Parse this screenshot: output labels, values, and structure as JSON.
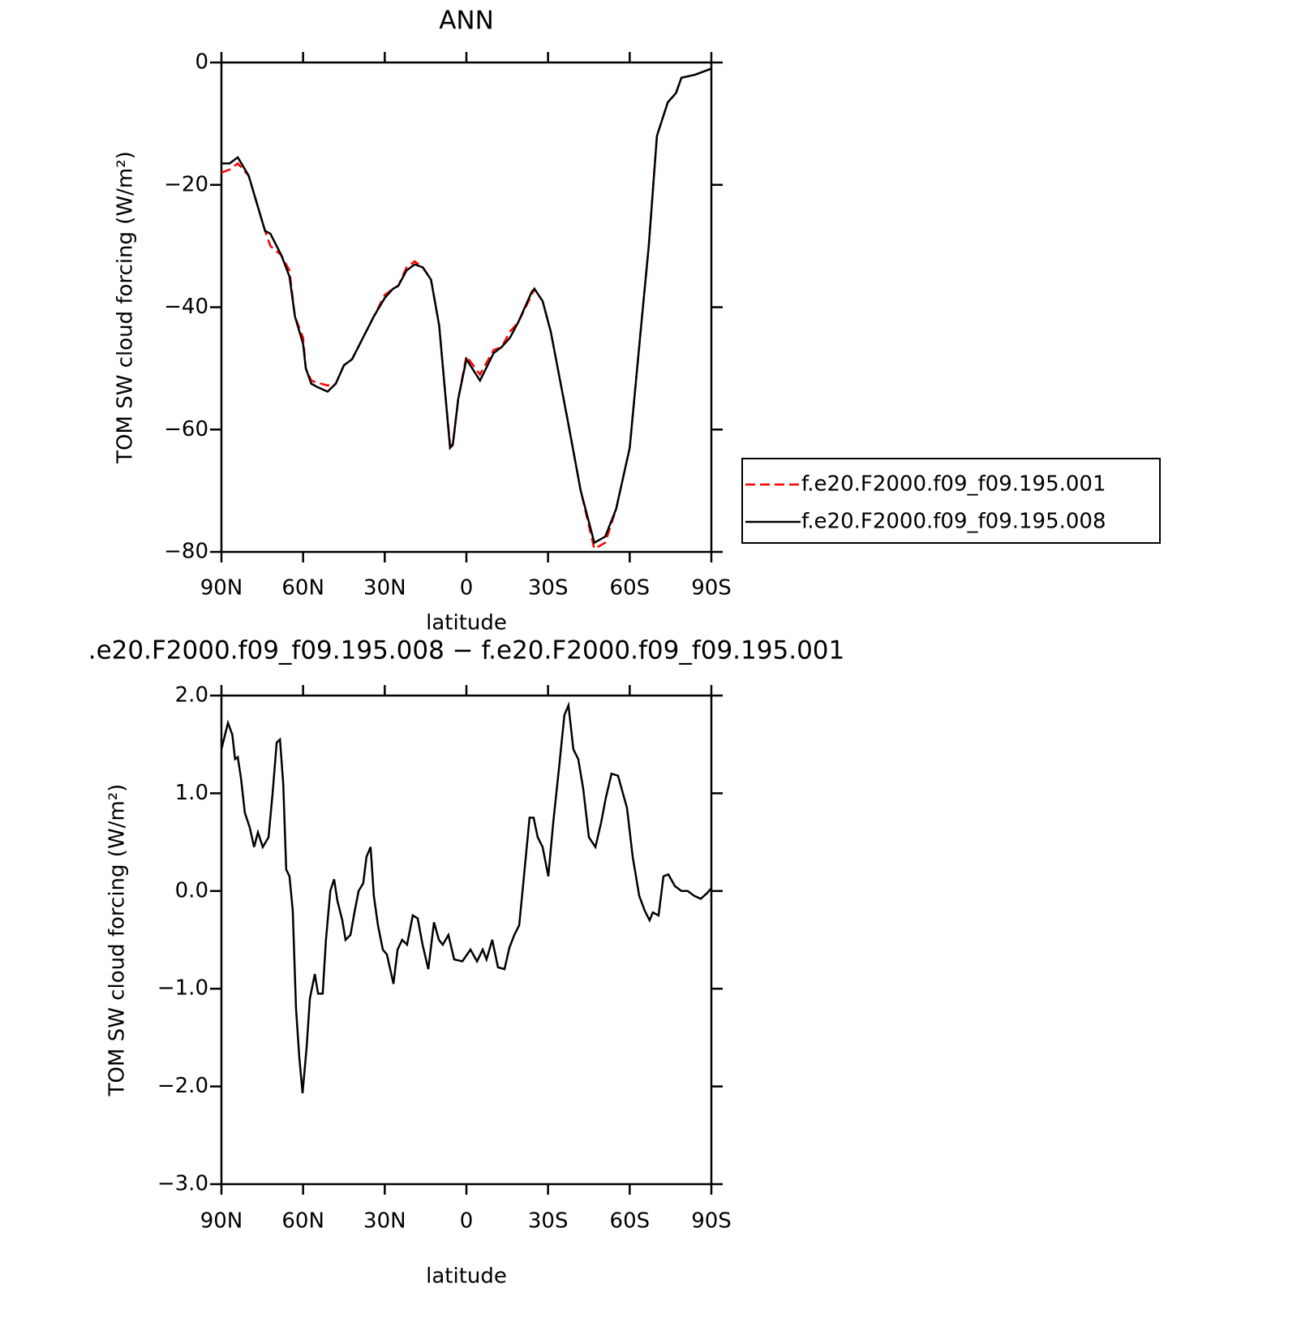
{
  "chart_data": [
    {
      "type": "line",
      "title": "ANN",
      "xlabel": "latitude",
      "ylabel": "TOM SW cloud forcing (W/m²)",
      "x": [
        90,
        87,
        84,
        80,
        77,
        74,
        72,
        68,
        65,
        63,
        60,
        59,
        57,
        55,
        51,
        48,
        45,
        42,
        38,
        34,
        30,
        27,
        25,
        22,
        19,
        16,
        13,
        10,
        8,
        6,
        5,
        3,
        0,
        -5,
        -10,
        -13,
        -16,
        -19,
        -24,
        -25,
        -28,
        -31,
        -37,
        -42,
        -47,
        -51,
        -55,
        -60,
        -64,
        -67,
        -70,
        -74,
        -77,
        -79,
        -84,
        -90
      ],
      "series": [
        {
          "name": "f.e20.F2000.f09_f09.195.001",
          "color": "#ff0000",
          "style": "dashed",
          "values": [
            -18,
            -17.5,
            -16.5,
            -18.5,
            -23,
            -27.5,
            -30,
            -31.5,
            -34,
            -41.5,
            -45,
            -50,
            -52,
            -52.3,
            -52.8,
            -52.5,
            -49.5,
            -48.5,
            -45,
            -41.5,
            -38,
            -37,
            -36.5,
            -33.5,
            -32.5,
            -33.5,
            -35.5,
            -43,
            -53,
            -62.5,
            -62.5,
            -55,
            -48,
            -51,
            -47,
            -46.5,
            -44,
            -42.5,
            -38,
            -37,
            -39,
            -44,
            -58,
            -70,
            -79.5,
            -78.5,
            -73,
            -63,
            -44,
            -30,
            -12,
            -6.5,
            -5,
            -2.5,
            -2,
            -1
          ]
        },
        {
          "name": "f.e20.F2000.f09_f09.195.008",
          "color": "#000000",
          "style": "solid",
          "values": [
            -16.5,
            -16.5,
            -15.5,
            -18.5,
            -23,
            -27.5,
            -28,
            -31.5,
            -35,
            -41.5,
            -46,
            -50,
            -52.5,
            -53,
            -53.8,
            -52.5,
            -49.5,
            -48.5,
            -45,
            -41.5,
            -38.5,
            -37,
            -36.5,
            -34,
            -33,
            -33.5,
            -35.5,
            -43,
            -53,
            -63,
            -62.5,
            -55,
            -48.5,
            -52,
            -47.5,
            -46.5,
            -45,
            -42.5,
            -37.5,
            -37,
            -39,
            -44,
            -58,
            -70,
            -78.5,
            -77.5,
            -73,
            -63,
            -44,
            -30,
            -12,
            -6.5,
            -5,
            -2.5,
            -2,
            -1
          ]
        }
      ],
      "xlim": [
        90,
        -90
      ],
      "xticks": [
        {
          "value": 90,
          "label": "90N"
        },
        {
          "value": 60,
          "label": "60N"
        },
        {
          "value": 30,
          "label": "30N"
        },
        0,
        {
          "value": -30,
          "label": "30S"
        },
        {
          "value": -60,
          "label": "60S"
        },
        {
          "value": -90,
          "label": "90S"
        }
      ],
      "ylim": [
        -80,
        0
      ],
      "yticks": [
        0,
        {
          "value": -20,
          "label": "−20"
        },
        {
          "value": -40,
          "label": "−40"
        },
        {
          "value": -60,
          "label": "−60"
        },
        {
          "value": -80,
          "label": "−80"
        }
      ],
      "legend": "outside-right"
    },
    {
      "type": "line",
      "title": ".e20.F2000.f09_f09.195.008 − f.e20.F2000.f09_f09.195.001",
      "xlabel": "latitude",
      "ylabel": "TOM SW cloud forcing (W/m²)",
      "x": [
        90,
        87.6,
        86,
        85,
        84,
        82.8,
        81.4,
        79.6,
        78,
        76.6,
        74.8,
        72.7,
        71.2,
        69.7,
        68.5,
        67.3,
        66.2,
        65,
        63.8,
        62.6,
        61.4,
        60.2,
        58.7,
        57.5,
        55.7,
        54.5,
        52.8,
        51.6,
        50,
        48.6,
        47.4,
        45.6,
        44.4,
        42.6,
        41,
        39.6,
        37.9,
        36.7,
        35.2,
        34,
        32.5,
        30.7,
        29.2,
        26.8,
        25.3,
        23.6,
        21.8,
        19.7,
        17.9,
        16.1,
        14,
        11.9,
        10.1,
        8.7,
        6.6,
        4.5,
        1.5,
        -1.5,
        -3.9,
        -6,
        -7.4,
        -9.5,
        -11.6,
        -14,
        -15.8,
        -17.6,
        -19.4,
        -20.8,
        -23.2,
        -24.7,
        -26.2,
        -28,
        -30.1,
        -31.9,
        -34,
        -36,
        -37.5,
        -39.3,
        -41.1,
        -42.9,
        -45,
        -47.4,
        -49.5,
        -51.2,
        -53.3,
        -55.7,
        -57.5,
        -59,
        -61.1,
        -63.5,
        -65.5,
        -67.3,
        -68.5,
        -70.6,
        -72.4,
        -74.2,
        -76.6,
        -79,
        -81.3,
        -83.7,
        -86.1,
        -88.5,
        -90
      ],
      "series": [
        {
          "color": "#000000",
          "style": "solid",
          "values": [
            1.45,
            1.72,
            1.6,
            1.35,
            1.37,
            1.15,
            0.8,
            0.65,
            0.45,
            0.6,
            0.45,
            0.55,
            1.0,
            1.52,
            1.55,
            1.1,
            0.22,
            0.15,
            -0.2,
            -1.2,
            -1.7,
            -2.07,
            -1.6,
            -1.1,
            -0.85,
            -1.05,
            -1.05,
            -0.5,
            0.0,
            0.12,
            -0.1,
            -0.3,
            -0.5,
            -0.45,
            -0.2,
            0.0,
            0.08,
            0.35,
            0.45,
            -0.05,
            -0.35,
            -0.6,
            -0.65,
            -0.95,
            -0.6,
            -0.5,
            -0.55,
            -0.25,
            -0.28,
            -0.55,
            -0.8,
            -0.32,
            -0.5,
            -0.55,
            -0.45,
            -0.7,
            -0.72,
            -0.6,
            -0.72,
            -0.6,
            -0.7,
            -0.5,
            -0.78,
            -0.8,
            -0.58,
            -0.45,
            -0.35,
            0.05,
            0.75,
            0.75,
            0.55,
            0.45,
            0.15,
            0.7,
            1.25,
            1.8,
            1.9,
            1.45,
            1.35,
            1.05,
            0.55,
            0.45,
            0.7,
            0.95,
            1.2,
            1.18,
            1.0,
            0.85,
            0.35,
            -0.05,
            -0.2,
            -0.3,
            -0.22,
            -0.25,
            0.15,
            0.17,
            0.05,
            0.0,
            0.0,
            -0.05,
            -0.08,
            -0.02,
            0.03
          ]
        }
      ],
      "xlim": [
        90,
        -90
      ],
      "xticks": [
        {
          "value": 90,
          "label": "90N"
        },
        {
          "value": 60,
          "label": "60N"
        },
        {
          "value": 30,
          "label": "30N"
        },
        0,
        {
          "value": -30,
          "label": "30S"
        },
        {
          "value": -60,
          "label": "60S"
        },
        {
          "value": -90,
          "label": "90S"
        }
      ],
      "ylim": [
        -3,
        2
      ],
      "yticks": [
        {
          "value": 2,
          "label": "2.0"
        },
        {
          "value": 1,
          "label": "1.0"
        },
        {
          "value": 0,
          "label": "0.0"
        },
        {
          "value": -1,
          "label": "−1.0"
        },
        {
          "value": -2,
          "label": "−2.0"
        },
        {
          "value": -3,
          "label": "−3.0"
        }
      ]
    }
  ]
}
